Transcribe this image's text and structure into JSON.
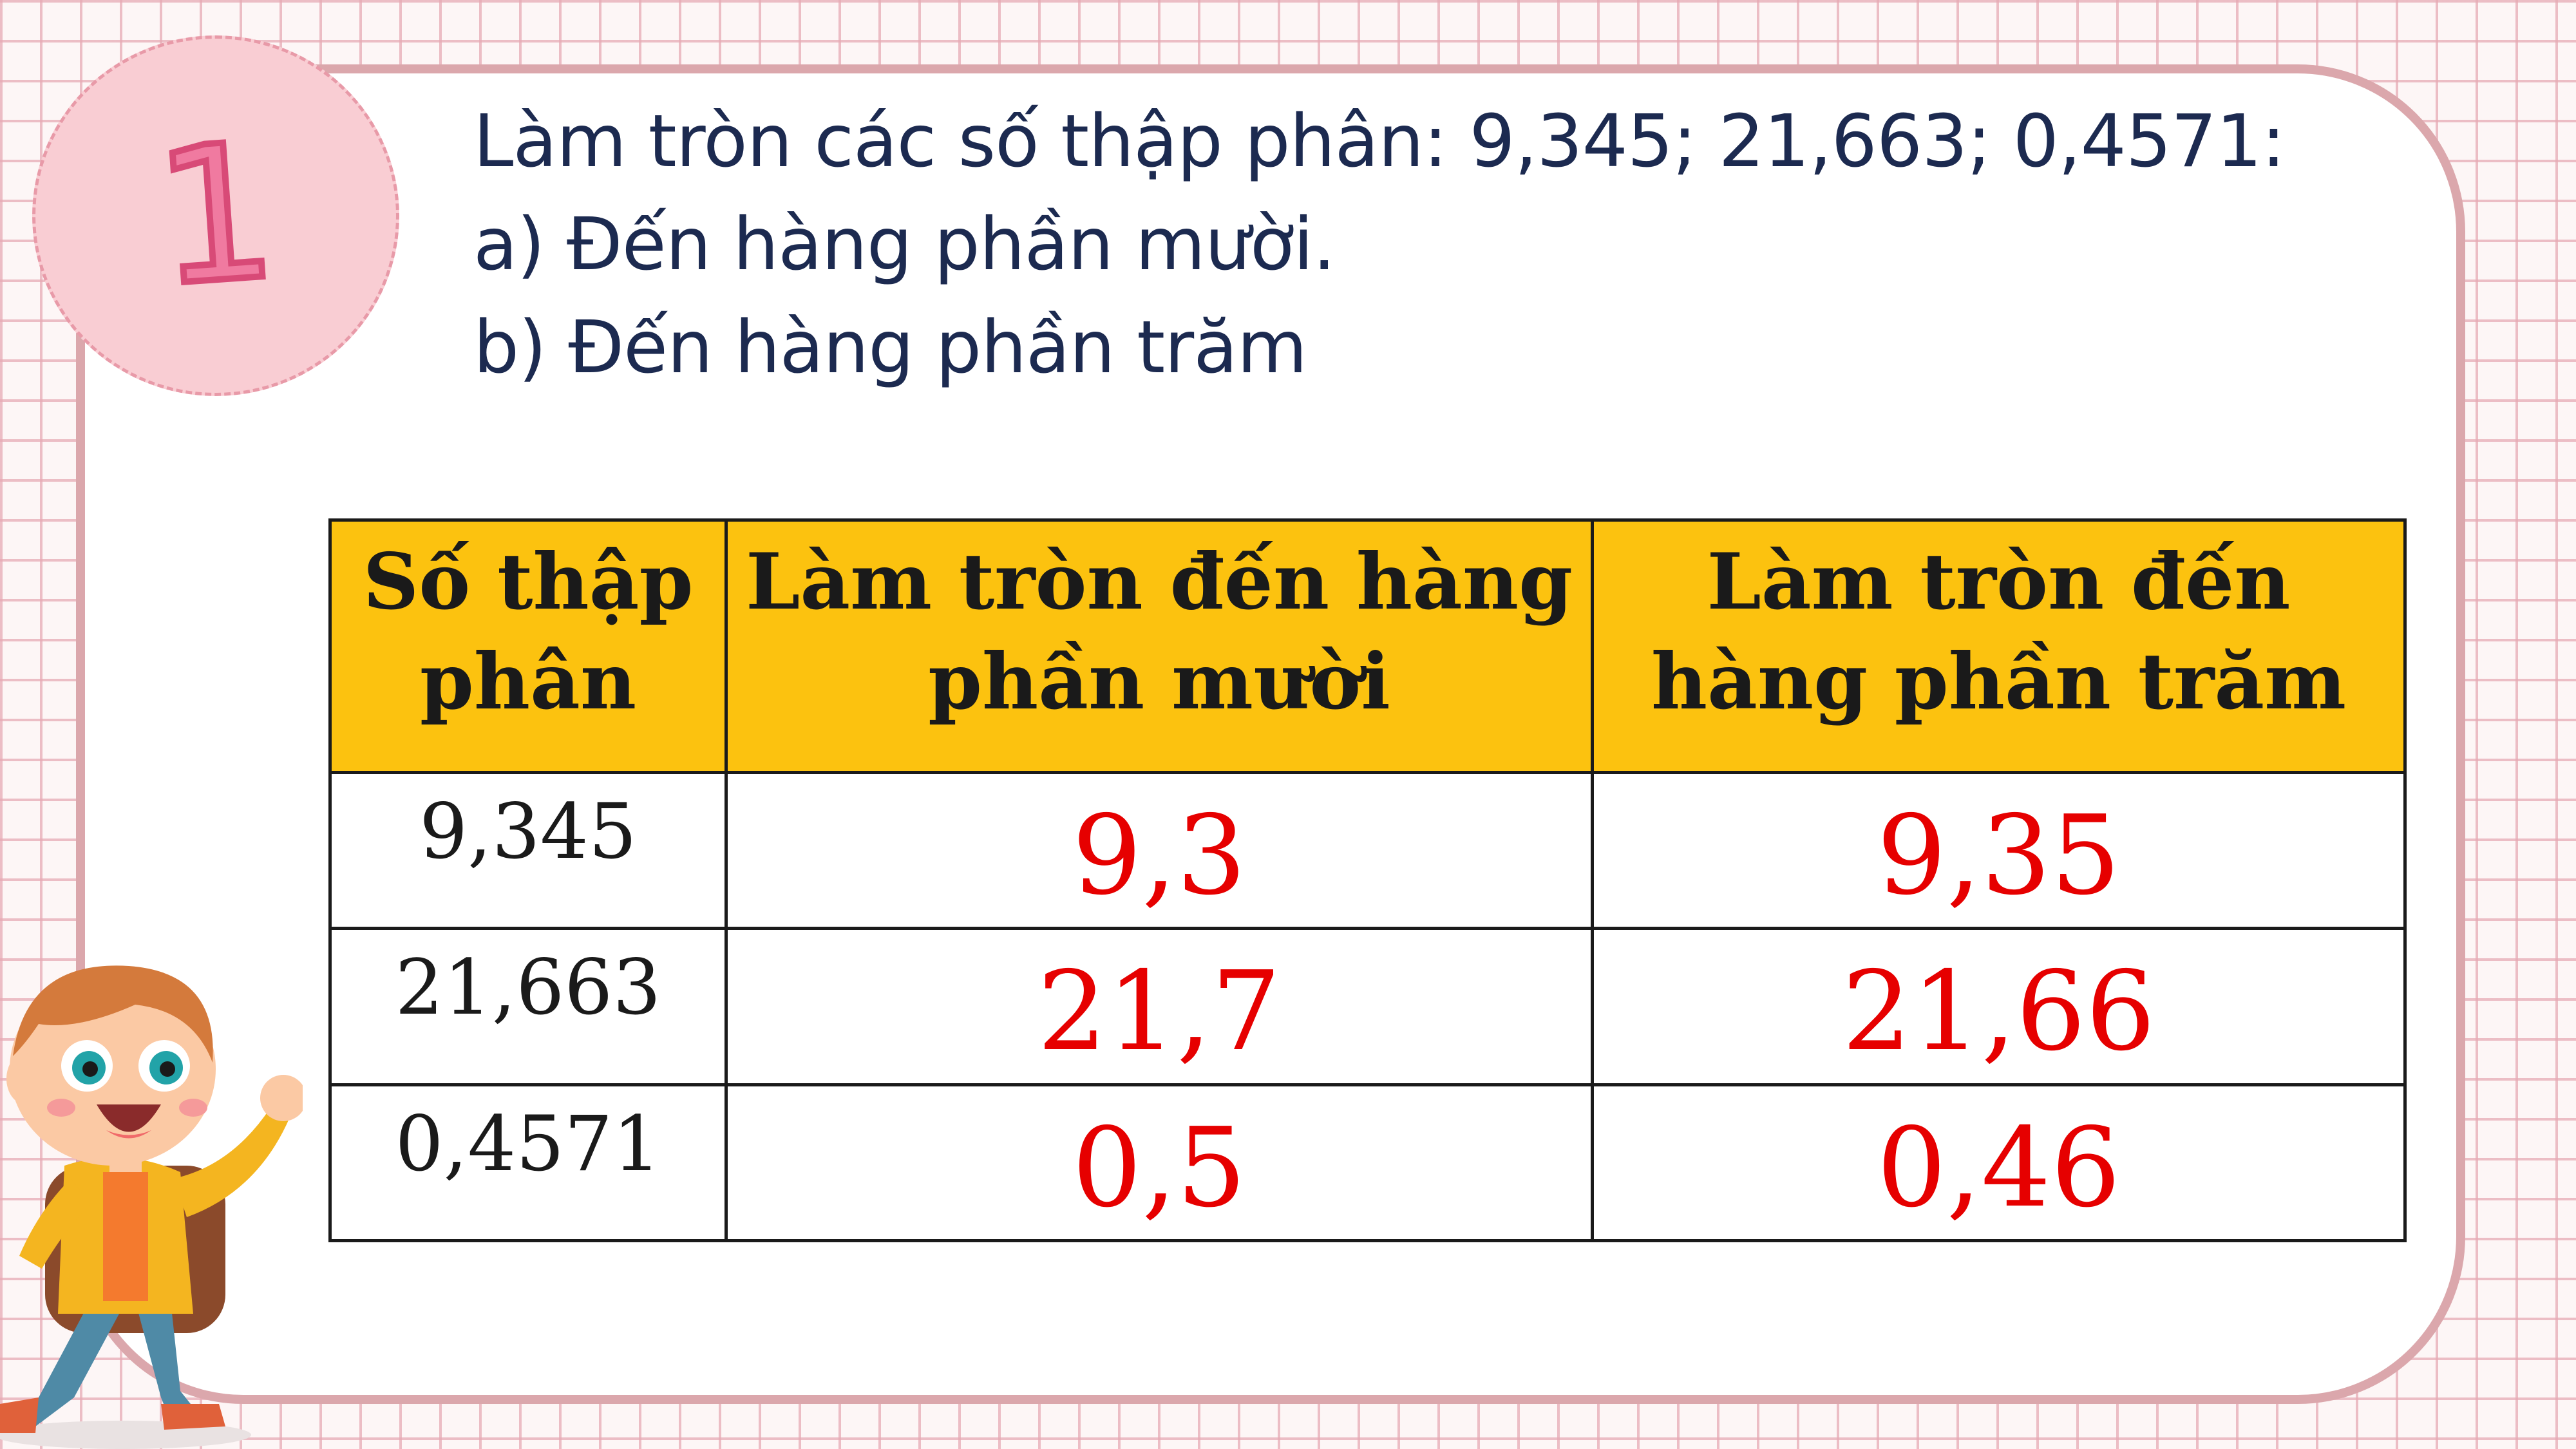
{
  "badge_number": "1",
  "question": {
    "line1": "Làm tròn các số thập phân: 9,345; 21,663; 0,4571:",
    "line2": "a) Đến hàng phần mười.",
    "line3": "b) Đến hàng phần trăm"
  },
  "table": {
    "headers": [
      "Số thập phân",
      "Làm tròn đến hàng phần mười",
      "Làm tròn đến hàng phần trăm"
    ],
    "rows": [
      {
        "decimal": "9,345",
        "tenths": "9,3",
        "hundredths": "9,35"
      },
      {
        "decimal": "21,663",
        "tenths": "21,7",
        "hundredths": "21,66"
      },
      {
        "decimal": "0,4571",
        "tenths": "0,5",
        "hundredths": "0,46"
      }
    ]
  },
  "colors": {
    "header_bg": "#fcc20f",
    "answer_text": "#e60000",
    "frame_border": "#dba7ac",
    "badge_fill": "#f9cdd3",
    "question_text": "#1c2a50"
  }
}
